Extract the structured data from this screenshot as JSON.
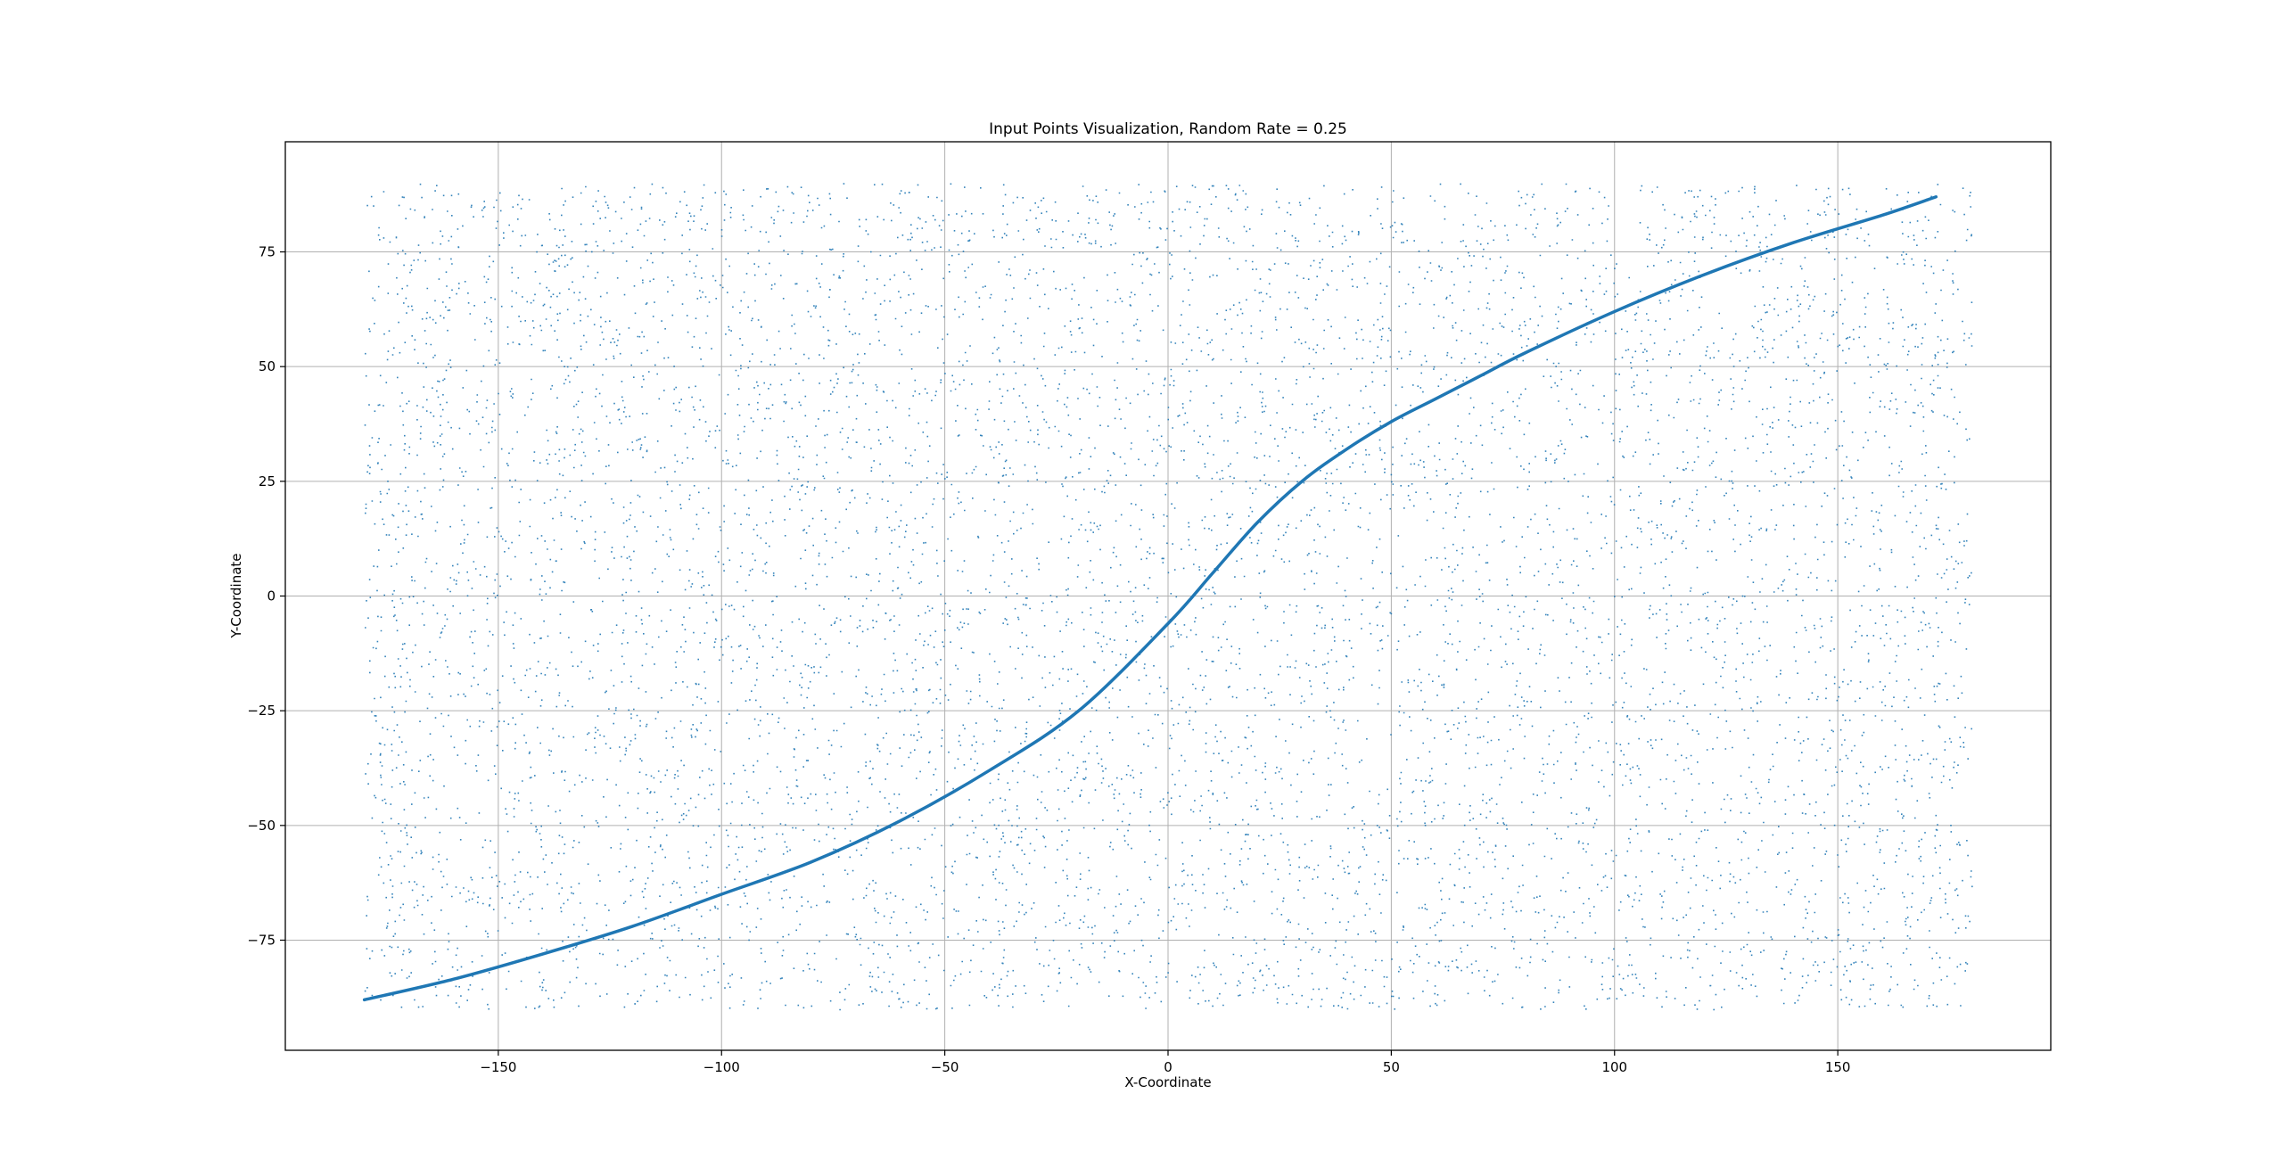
{
  "chart_data": {
    "type": "scatter",
    "title": "Input Points Visualization, Random Rate = 0.25",
    "xlabel": "X-Coordinate",
    "ylabel": "Y-Coordinate",
    "xlim": [
      -197.7,
      197.7
    ],
    "ylim": [
      -99,
      99
    ],
    "xticks": [
      -150,
      -100,
      -50,
      0,
      50,
      100,
      150
    ],
    "xtick_labels": [
      "−150",
      "−100",
      "−50",
      "0",
      "50",
      "100",
      "150"
    ],
    "yticks": [
      -75,
      -50,
      -25,
      0,
      25,
      50,
      75
    ],
    "ytick_labels": [
      "−75",
      "−50",
      "−25",
      "0",
      "25",
      "50",
      "75"
    ],
    "grid": true,
    "legend": "none",
    "scatter": {
      "distribution": "uniform",
      "x_range": [
        -180,
        180
      ],
      "y_range": [
        -90,
        90
      ],
      "approx_count": 45000,
      "color": "#1f77b4"
    },
    "series": [
      {
        "type": "line",
        "color": "#1f77b4",
        "x": [
          -180,
          -160,
          -140,
          -120,
          -100,
          -80,
          -60,
          -40,
          -20,
          0,
          10,
          20,
          30,
          40,
          50,
          60,
          70,
          80,
          100,
          120,
          140,
          160,
          172
        ],
        "y": [
          -88,
          -83.5,
          -78,
          -72,
          -65,
          -58,
          -49,
          -38,
          -25,
          -6,
          5,
          16,
          25,
          32,
          38,
          43,
          48,
          53,
          62,
          70,
          77,
          83,
          87
        ]
      }
    ],
    "colors": {
      "accent": "#1f77b4",
      "grid": "#b0b0b0",
      "frame": "#000000"
    }
  }
}
